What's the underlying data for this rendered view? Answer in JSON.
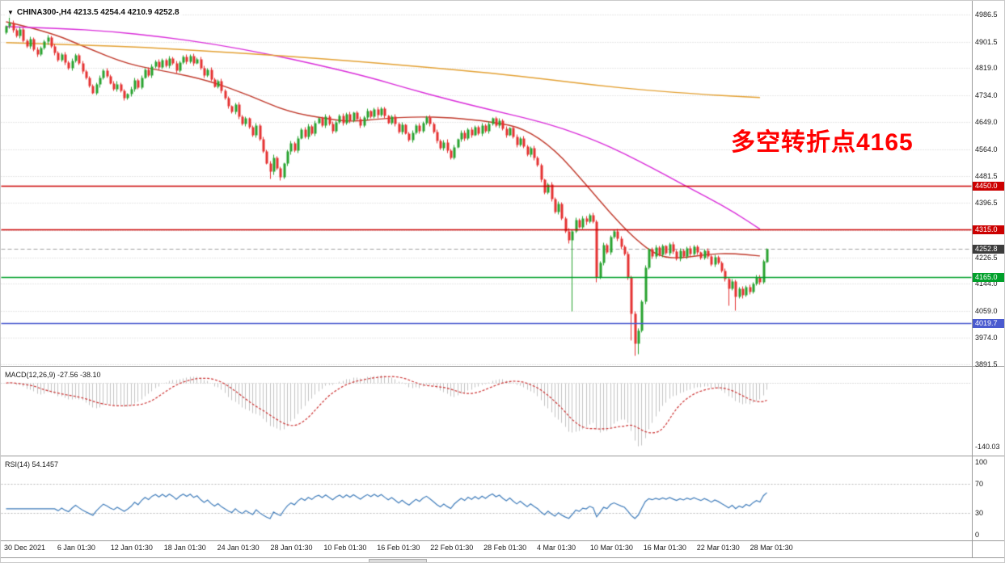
{
  "header": {
    "text": "CHINA300-,H4 4213.5 4254.4 4210.9 4252.8"
  },
  "annotation": {
    "text": "多空转折点4165",
    "color": "#ff0000"
  },
  "macd_panel": {
    "label": "MACD(12,26,9) -27.56 -38.10",
    "min_label": "-140.03"
  },
  "rsi_panel": {
    "label": "RSI(14) 54.1457",
    "ticks": [
      "100",
      "70",
      "30",
      "0"
    ],
    "levels": [
      70,
      30
    ]
  },
  "colors": {
    "up": "#27a22e",
    "down": "#e53030",
    "ma_fast_red": "#c0392b",
    "ma_mid_magenta": "#d92bd9",
    "ma_slow_orange": "#e3a032",
    "grid": "#cfcfcf",
    "histogram": "#c2c2c2",
    "signal": "#cc3333",
    "rsi_line": "#3f7cba",
    "current_line": "#a0a0a0"
  },
  "chart_data": {
    "type": "candlestick",
    "symbol": "CHINA300-",
    "timeframe": "H4",
    "last_bar": {
      "open": 4213.5,
      "high": 4254.4,
      "low": 4210.9,
      "close": 4252.8
    },
    "y_range": [
      3891.5,
      4986.5
    ],
    "y_ticks": [
      "4986.5",
      "4901.5",
      "4819.0",
      "4734.0",
      "4649.0",
      "4564.0",
      "4481.5",
      "4396.5",
      "4311.5",
      "4226.5",
      "4144.0",
      "4059.0",
      "3974.0",
      "3891.5"
    ],
    "x_labels": [
      "30 Dec 2021",
      "6 Jan 01:30",
      "12 Jan 01:30",
      "18 Jan 01:30",
      "24 Jan 01:30",
      "28 Jan 01:30",
      "10 Feb 01:30",
      "16 Feb 01:30",
      "22 Feb 01:30",
      "28 Feb 01:30",
      "4 Mar 01:30",
      "10 Mar 01:30",
      "16 Mar 01:30",
      "22 Mar 01:30",
      "28 Mar 01:30"
    ],
    "levels": [
      {
        "price": 4450.0,
        "label": "4450.0",
        "color": "#cc0000"
      },
      {
        "price": 4315.0,
        "label": "4315.0",
        "color": "#cc0000"
      },
      {
        "price": 4165.0,
        "label": "4165.0",
        "color": "#00a02a"
      },
      {
        "price": 4019.7,
        "label": "4019.7",
        "color": "#4a5acf"
      }
    ],
    "current_price": {
      "value": 4252.8,
      "label": "4252.8",
      "label_bg": "#3c3c3c"
    },
    "open_first": 4930,
    "wick_base": 4,
    "closes": [
      4950,
      4962,
      4938,
      4920,
      4941,
      4905,
      4888,
      4910,
      4878,
      4862,
      4884,
      4902,
      4915,
      4889,
      4868,
      4845,
      4862,
      4838,
      4820,
      4842,
      4860,
      4835,
      4810,
      4788,
      4765,
      4742,
      4768,
      4790,
      4812,
      4795,
      4772,
      4755,
      4770,
      4748,
      4725,
      4738,
      4755,
      4782,
      4760,
      4790,
      4815,
      4798,
      4825,
      4840,
      4822,
      4845,
      4828,
      4850,
      4835,
      4812,
      4838,
      4855,
      4840,
      4858,
      4835,
      4848,
      4820,
      4798,
      4815,
      4785,
      4762,
      4778,
      4748,
      4725,
      4700,
      4682,
      4705,
      4668,
      4645,
      4662,
      4635,
      4610,
      4640,
      4598,
      4560,
      4522,
      4495,
      4540,
      4505,
      4478,
      4520,
      4558,
      4585,
      4562,
      4600,
      4628,
      4605,
      4638,
      4615,
      4648,
      4662,
      4640,
      4668,
      4645,
      4622,
      4650,
      4670,
      4648,
      4675,
      4655,
      4680,
      4660,
      4640,
      4665,
      4685,
      4668,
      4690,
      4672,
      4692,
      4670,
      4648,
      4668,
      4645,
      4620,
      4642,
      4615,
      4595,
      4618,
      4640,
      4622,
      4648,
      4665,
      4645,
      4620,
      4592,
      4568,
      4588,
      4562,
      4540,
      4572,
      4596,
      4618,
      4600,
      4628,
      4610,
      4635,
      4615,
      4640,
      4622,
      4645,
      4662,
      4640,
      4655,
      4630,
      4610,
      4632,
      4605,
      4580,
      4600,
      4575,
      4548,
      4568,
      4540,
      4515,
      4470,
      4430,
      4455,
      4410,
      4370,
      4395,
      4348,
      4310,
      4280,
      4310,
      4345,
      4322,
      4350,
      4338,
      4360,
      4340,
      4165,
      4210,
      4265,
      4242,
      4290,
      4310,
      4285,
      4260,
      4238,
      4165,
      4052,
      3958,
      3998,
      4088,
      4195,
      4252,
      4230,
      4258,
      4235,
      4262,
      4240,
      4268,
      4245,
      4222,
      4248,
      4230,
      4255,
      4238,
      4260,
      4242,
      4225,
      4248,
      4230,
      4205,
      4228,
      4210,
      4185,
      4160,
      4130,
      4152,
      4105,
      4128,
      4108,
      4135,
      4118,
      4145,
      4165,
      4150,
      4214,
      4252.8
    ],
    "overrides": {
      "1": {
        "high": 4985.5
      },
      "76": {
        "low": 4473
      },
      "79": {
        "low": 4468
      },
      "163": {
        "low": 4058
      },
      "170": {
        "low": 4150
      },
      "180": {
        "low": 3968
      },
      "181": {
        "low": 3920
      },
      "182": {
        "low": 3924
      },
      "208": {
        "low": 4075
      },
      "210": {
        "low": 4062
      },
      "219": {
        "open": 4213.5,
        "high": 4254.4,
        "low": 4210.9
      }
    },
    "ma_overlays": [
      {
        "name": "fast-red-ma",
        "color": "#c0392b",
        "points": [
          [
            0,
            4965
          ],
          [
            12,
            4935
          ],
          [
            23,
            4885
          ],
          [
            35,
            4832
          ],
          [
            47,
            4808
          ],
          [
            58,
            4782
          ],
          [
            70,
            4735
          ],
          [
            81,
            4683
          ],
          [
            93,
            4660
          ],
          [
            100,
            4652
          ],
          [
            108,
            4662
          ],
          [
            118,
            4668
          ],
          [
            128,
            4665
          ],
          [
            140,
            4652
          ],
          [
            149,
            4632
          ],
          [
            158,
            4565
          ],
          [
            167,
            4455
          ],
          [
            174,
            4365
          ],
          [
            181,
            4285
          ],
          [
            188,
            4228
          ],
          [
            195,
            4225
          ],
          [
            202,
            4238
          ],
          [
            209,
            4240
          ],
          [
            217,
            4232
          ]
        ]
      },
      {
        "name": "mid-magenta-ma",
        "color": "#d92bd9",
        "points": [
          [
            0,
            4950
          ],
          [
            15,
            4945
          ],
          [
            30,
            4935
          ],
          [
            45,
            4918
          ],
          [
            60,
            4895
          ],
          [
            75,
            4865
          ],
          [
            90,
            4830
          ],
          [
            105,
            4790
          ],
          [
            116,
            4755
          ],
          [
            128,
            4720
          ],
          [
            140,
            4688
          ],
          [
            151,
            4660
          ],
          [
            160,
            4632
          ],
          [
            170,
            4592
          ],
          [
            178,
            4552
          ],
          [
            186,
            4508
          ],
          [
            194,
            4460
          ],
          [
            202,
            4415
          ],
          [
            210,
            4366
          ],
          [
            217,
            4316
          ]
        ]
      },
      {
        "name": "slow-orange-ma",
        "color": "#e3a032",
        "points": [
          [
            0,
            4900
          ],
          [
            20,
            4893
          ],
          [
            40,
            4885
          ],
          [
            60,
            4872
          ],
          [
            80,
            4858
          ],
          [
            100,
            4842
          ],
          [
            120,
            4824
          ],
          [
            140,
            4804
          ],
          [
            155,
            4786
          ],
          [
            170,
            4766
          ],
          [
            185,
            4750
          ],
          [
            200,
            4738
          ],
          [
            210,
            4732
          ],
          [
            217,
            4728
          ]
        ]
      }
    ],
    "indicators": {
      "macd": {
        "fast": 12,
        "slow": 26,
        "signal": 9,
        "display_values": [
          -27.56,
          -38.1
        ],
        "axis_min": -140.03
      },
      "rsi": {
        "period": 14,
        "display_value": 54.1457,
        "range": [
          0,
          100
        ],
        "levels": [
          30,
          70
        ]
      }
    }
  }
}
